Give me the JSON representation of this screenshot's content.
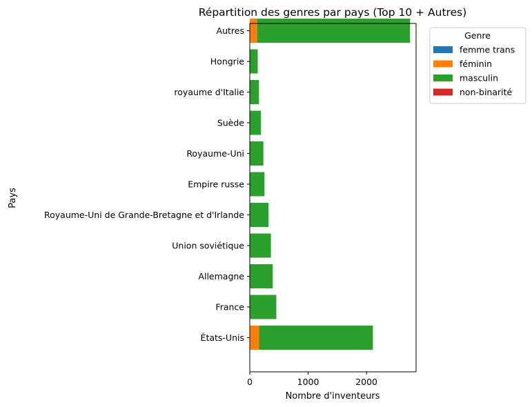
{
  "chart_data": {
    "type": "bar",
    "orientation": "horizontal",
    "stacked": true,
    "title": "Répartition des genres par pays (Top 10 + Autres)",
    "xlabel": "Nombre d'inventeurs",
    "ylabel": "Pays",
    "xlim": [
      0,
      2850
    ],
    "xticks": [
      0,
      1000,
      2000
    ],
    "grid": false,
    "legend": {
      "title": "Genre",
      "placement": "outside-top-right"
    },
    "categories": [
      "États-Unis",
      "France",
      "Allemagne",
      "Union soviétique",
      "Royaume-Uni de Grande-Bretagne et d'Irlande",
      "Empire russe",
      "Royaume-Uni",
      "Suède",
      "royaume d'Italie",
      "Hongrie",
      "Autres"
    ],
    "series": [
      {
        "name": "femme trans",
        "color": "#1f77b4",
        "values": [
          0,
          0,
          0,
          0,
          0,
          0,
          0,
          0,
          0,
          0,
          1
        ]
      },
      {
        "name": "féminin",
        "color": "#ff7f0e",
        "values": [
          160,
          5,
          3,
          2,
          2,
          2,
          3,
          1,
          2,
          1,
          125
        ]
      },
      {
        "name": "masculin",
        "color": "#2ca02c",
        "values": [
          1950,
          450,
          390,
          360,
          320,
          250,
          230,
          190,
          155,
          135,
          2620
        ]
      },
      {
        "name": "non-binarité",
        "color": "#d62728",
        "values": [
          1,
          0,
          0,
          0,
          0,
          0,
          0,
          0,
          0,
          0,
          1
        ]
      }
    ]
  }
}
